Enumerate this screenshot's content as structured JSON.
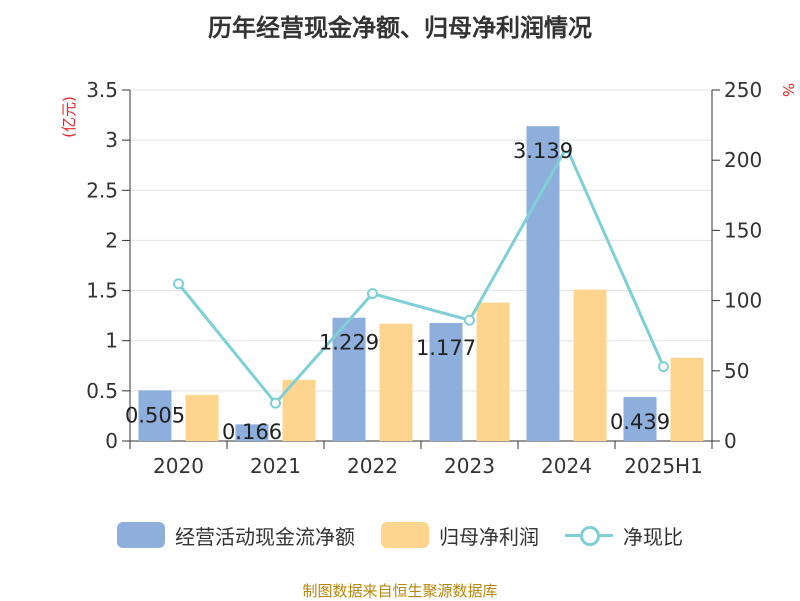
{
  "chart_data": {
    "type": "bar",
    "title": "历年经营现金净额、归母净利润情况",
    "categories": [
      "2020",
      "2021",
      "2022",
      "2023",
      "2024",
      "2025H1"
    ],
    "y_left": {
      "unit": "(亿元)",
      "ylim": [
        0,
        3.5
      ],
      "ticks": [
        "0",
        "0.5",
        "1",
        "1.5",
        "2",
        "2.5",
        "3",
        "3.5"
      ]
    },
    "y_right": {
      "unit": "%",
      "ylim": [
        0,
        250
      ],
      "ticks": [
        "0",
        "50",
        "100",
        "150",
        "200",
        "250"
      ]
    },
    "series": [
      {
        "name": "经营活动现金流净额",
        "type": "bar",
        "axis": "left",
        "color": "#8eaedc",
        "values": [
          0.505,
          0.166,
          1.229,
          1.177,
          3.139,
          0.439
        ],
        "labels": [
          "0.505",
          "0.166",
          "1.229",
          "1.177",
          "3.139",
          "0.439"
        ]
      },
      {
        "name": "归母净利润",
        "type": "bar",
        "axis": "left",
        "color": "#fdd58e",
        "values": [
          0.46,
          0.61,
          1.17,
          1.38,
          1.51,
          0.83
        ]
      },
      {
        "name": "净现比",
        "type": "line",
        "axis": "right",
        "color": "#7fd0d6",
        "values": [
          112,
          27,
          105,
          86,
          209,
          53
        ]
      }
    ],
    "grid": true,
    "legend": "bottom"
  },
  "source": "制图数据来自恒生聚源数据库"
}
